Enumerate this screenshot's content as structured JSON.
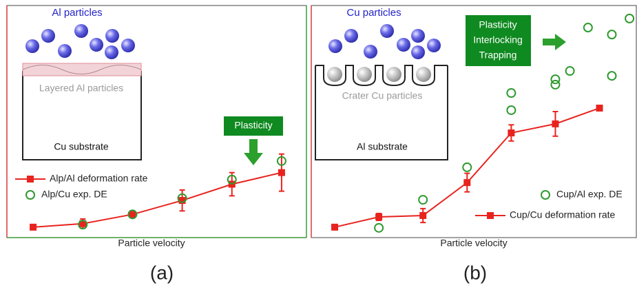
{
  "chart_data": [
    {
      "type": "line",
      "panel_label": "(a)",
      "xlabel": "Particle velocity",
      "annotations": {
        "particles": "Al particles",
        "layer": "Layered Al particles",
        "substrate": "Cu substrate",
        "mechanism": [
          "Plasticity"
        ]
      },
      "xlim": [
        0.5,
        6.5
      ],
      "ylim": [
        0,
        100
      ],
      "series": [
        {
          "name": "Alp/Al deformation rate",
          "color": "#e8231e",
          "marker": "square",
          "x": [
            1,
            2,
            3,
            4,
            5,
            6
          ],
          "values": [
            4.5,
            6,
            10,
            16,
            23,
            28
          ],
          "errors": [
            null,
            2,
            null,
            4.5,
            5,
            8
          ]
        },
        {
          "name": "Alp/Cu exp. DE",
          "color": "#2e9a2e",
          "marker": "circle",
          "x": [
            2,
            3,
            4,
            5,
            6
          ],
          "values": [
            5.6,
            10,
            17,
            25,
            33
          ]
        }
      ]
    },
    {
      "type": "line",
      "panel_label": "(b)",
      "xlabel": "Particle velocity",
      "annotations": {
        "particles": "Cu particles",
        "layer": "Crater Cu particles",
        "substrate": "Al substrate",
        "mechanism": [
          "Plasticity",
          "Interlocking",
          "Trapping"
        ]
      },
      "xlim": [
        0.5,
        7.85
      ],
      "ylim": [
        0,
        100
      ],
      "series": [
        {
          "name": "Cup/Al exp. DE",
          "color": "#2e9a2e",
          "marker": "circle",
          "x": [
            2,
            3,
            4,
            5,
            5,
            6,
            6,
            6.33,
            6.74,
            7.28,
            7.28,
            7.68
          ],
          "values": [
            4.2,
            16.3,
            30.3,
            62.3,
            54.9,
            68.2,
            65.9,
            71.8,
            90.5,
            87.5,
            69.7,
            94.4
          ]
        },
        {
          "name": "Cup/Cu deformation rate",
          "color": "#e8231e",
          "marker": "square",
          "x": [
            1,
            2,
            3,
            4,
            5,
            6,
            7
          ],
          "values": [
            4.5,
            8.9,
            9.5,
            23.7,
            45.1,
            49,
            55.8
          ],
          "errors": [
            null,
            1.5,
            3,
            4,
            3.5,
            5.3,
            null
          ]
        }
      ]
    }
  ]
}
